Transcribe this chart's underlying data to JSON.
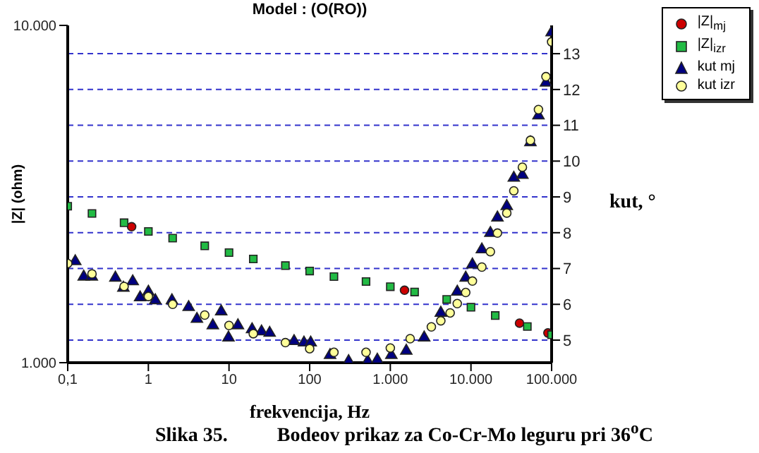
{
  "chart_data": {
    "type": "scatter",
    "title": "Model : (O(RO))",
    "xlabel": "frekvencija, Hz",
    "ylabel": "|Z| (ohm)",
    "y2label": "kut, °",
    "log": "xy",
    "grid": true,
    "legend": "top right",
    "xlim": [
      0.1,
      100000
    ],
    "xticks": [
      {
        "value": 0.1,
        "label": "0,1"
      },
      1,
      10,
      100,
      {
        "value": 1000,
        "label": "1.000"
      },
      {
        "value": 10000,
        "label": "10.000"
      },
      {
        "value": 100000,
        "label": "100.000"
      }
    ],
    "ylim": [
      1000,
      10000
    ],
    "yticks": [
      {
        "value": 1000,
        "label": "1.000"
      },
      {
        "value": 10000,
        "label": "10.000"
      }
    ],
    "y2lim": [
      4.37,
      13.79
    ],
    "y2ticks": [
      5,
      6,
      7,
      8,
      9,
      10,
      11,
      12,
      13
    ],
    "series": [
      {
        "name": "|Z|$_{mj}$",
        "color": "#cc0000",
        "marker": "circle",
        "x": [
          0.62,
          1500,
          40000,
          90000
        ],
        "values": [
          2530,
          1640,
          1310,
          1225
        ]
      },
      {
        "name": "|Z|$_{izr}$",
        "color": "#22bb44",
        "marker": "square",
        "x": [
          0.1,
          0.2,
          0.5,
          1,
          2,
          5,
          10,
          20,
          50,
          100,
          200,
          500,
          1000,
          2000,
          5000,
          10000,
          20000,
          50000,
          100000
        ],
        "values": [
          2910,
          2770,
          2600,
          2450,
          2340,
          2220,
          2120,
          2030,
          1940,
          1870,
          1800,
          1740,
          1680,
          1620,
          1540,
          1460,
          1380,
          1280,
          1210
        ]
      },
      {
        "name": "kut mj",
        "color": "#000080",
        "marker": "triangle",
        "axis": "y2",
        "x": [
          0.124,
          0.158,
          0.199,
          0.39,
          0.49,
          0.64,
          0.79,
          1,
          1.22,
          1.96,
          3.16,
          4,
          6.3,
          8,
          9.85,
          12.9,
          19.3,
          25.3,
          31.9,
          64,
          85,
          103,
          179,
          304,
          524,
          690,
          1030,
          1578,
          2630,
          4229,
          6760,
          8610,
          10420,
          13650,
          17400,
          21300,
          27800,
          34000,
          43400,
          54600,
          68700,
          85100,
          100000
        ],
        "values": [
          7.2,
          6.77,
          6.77,
          6.74,
          6.46,
          6.64,
          6.19,
          6.35,
          6.11,
          6.11,
          5.92,
          5.59,
          5.41,
          5.8,
          5.07,
          5.41,
          5.3,
          5.24,
          5.2,
          4.97,
          4.93,
          4.93,
          4.58,
          4.41,
          4.41,
          4.45,
          4.58,
          4.7,
          5.07,
          5.76,
          6.35,
          6.74,
          7.11,
          7.53,
          7.99,
          8.42,
          8.74,
          9.53,
          9.61,
          10.52,
          11.27,
          12.19,
          13.59
        ]
      },
      {
        "name": "kut izr",
        "color": "#ffff99",
        "marker": "circle",
        "axis": "y2",
        "x": [
          0.1,
          0.2,
          0.5,
          1,
          2,
          5,
          10,
          20,
          50,
          100,
          200,
          500,
          1000,
          1762,
          3228,
          4229,
          5520,
          6760,
          8610,
          10420,
          13650,
          17400,
          21300,
          27800,
          34000,
          43400,
          54600,
          68700,
          85100,
          100000
        ],
        "values": [
          7.14,
          6.85,
          6.5,
          6.22,
          6.0,
          5.7,
          5.41,
          5.18,
          4.93,
          4.76,
          4.66,
          4.66,
          4.78,
          5.04,
          5.37,
          5.54,
          5.76,
          6.02,
          6.33,
          6.65,
          7.04,
          7.47,
          7.99,
          8.55,
          9.17,
          9.83,
          10.58,
          11.44,
          12.36,
          13.33
        ]
      }
    ],
    "annotations": [
      "Slika 35.          Bodeov prikaz za Co-Cr-Mo leguru pri 36$^{o}$C"
    ]
  }
}
